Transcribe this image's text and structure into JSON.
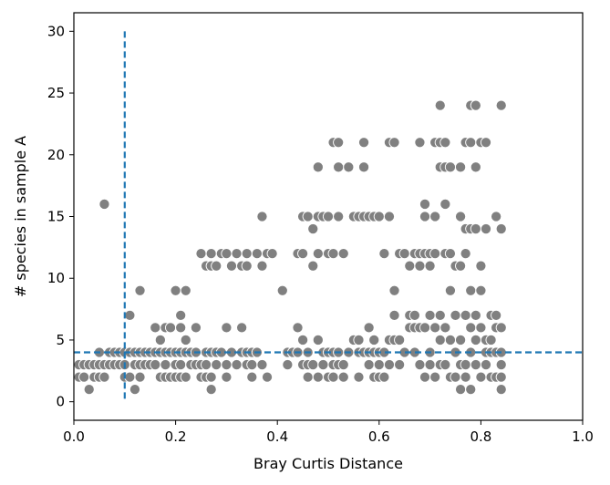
{
  "chart_data": {
    "type": "scatter",
    "title": "",
    "xlabel": "Bray Curtis Distance",
    "ylabel": "# species in sample A",
    "xlim": [
      0.0,
      1.0
    ],
    "ylim": [
      -1.5,
      31.5
    ],
    "xticks": [
      0.0,
      0.2,
      0.4,
      0.6,
      0.8,
      1.0
    ],
    "xtick_labels": [
      "0.0",
      "0.2",
      "0.4",
      "0.6",
      "0.8",
      "1.0"
    ],
    "yticks": [
      0,
      5,
      10,
      15,
      20,
      25,
      30
    ],
    "ytick_labels": [
      "0",
      "5",
      "10",
      "15",
      "20",
      "25",
      "30"
    ],
    "grid": false,
    "legend": "none",
    "marker_color": "#808080",
    "reference_lines": [
      {
        "orientation": "vertical",
        "x": 0.1,
        "y_range": [
          0,
          30
        ],
        "style": "dashed",
        "color": "#1f77b4"
      },
      {
        "orientation": "horizontal",
        "y": 4,
        "style": "dashed",
        "color": "#1f77b4"
      }
    ],
    "points": [
      [
        0.01,
        3
      ],
      [
        0.01,
        2
      ],
      [
        0.02,
        3
      ],
      [
        0.02,
        2
      ],
      [
        0.03,
        1
      ],
      [
        0.03,
        3
      ],
      [
        0.04,
        2
      ],
      [
        0.04,
        3
      ],
      [
        0.05,
        4
      ],
      [
        0.05,
        3
      ],
      [
        0.05,
        2
      ],
      [
        0.06,
        16
      ],
      [
        0.06,
        3
      ],
      [
        0.06,
        2
      ],
      [
        0.07,
        4
      ],
      [
        0.07,
        3
      ],
      [
        0.08,
        3
      ],
      [
        0.08,
        4
      ],
      [
        0.09,
        4
      ],
      [
        0.09,
        3
      ],
      [
        0.1,
        2
      ],
      [
        0.1,
        3
      ],
      [
        0.1,
        4
      ],
      [
        0.11,
        7
      ],
      [
        0.11,
        2
      ],
      [
        0.11,
        4
      ],
      [
        0.12,
        3
      ],
      [
        0.12,
        4
      ],
      [
        0.12,
        1
      ],
      [
        0.13,
        9
      ],
      [
        0.13,
        4
      ],
      [
        0.13,
        2
      ],
      [
        0.13,
        3
      ],
      [
        0.14,
        4
      ],
      [
        0.14,
        3
      ],
      [
        0.15,
        4
      ],
      [
        0.15,
        3
      ],
      [
        0.16,
        6
      ],
      [
        0.16,
        4
      ],
      [
        0.16,
        3
      ],
      [
        0.17,
        4
      ],
      [
        0.17,
        2
      ],
      [
        0.17,
        5
      ],
      [
        0.18,
        6
      ],
      [
        0.18,
        4
      ],
      [
        0.18,
        3
      ],
      [
        0.18,
        2
      ],
      [
        0.19,
        6
      ],
      [
        0.19,
        4
      ],
      [
        0.19,
        2
      ],
      [
        0.2,
        9
      ],
      [
        0.2,
        4
      ],
      [
        0.2,
        3
      ],
      [
        0.2,
        2
      ],
      [
        0.21,
        7
      ],
      [
        0.21,
        6
      ],
      [
        0.21,
        4
      ],
      [
        0.21,
        3
      ],
      [
        0.21,
        2
      ],
      [
        0.22,
        9
      ],
      [
        0.22,
        5
      ],
      [
        0.22,
        4
      ],
      [
        0.22,
        2
      ],
      [
        0.23,
        4
      ],
      [
        0.23,
        3
      ],
      [
        0.24,
        6
      ],
      [
        0.24,
        4
      ],
      [
        0.24,
        3
      ],
      [
        0.25,
        12
      ],
      [
        0.25,
        3
      ],
      [
        0.25,
        2
      ],
      [
        0.26,
        11
      ],
      [
        0.26,
        4
      ],
      [
        0.26,
        3
      ],
      [
        0.26,
        2
      ],
      [
        0.27,
        12
      ],
      [
        0.27,
        11
      ],
      [
        0.27,
        4
      ],
      [
        0.27,
        2
      ],
      [
        0.27,
        1
      ],
      [
        0.28,
        11
      ],
      [
        0.28,
        4
      ],
      [
        0.28,
        3
      ],
      [
        0.29,
        12
      ],
      [
        0.29,
        4
      ],
      [
        0.3,
        12
      ],
      [
        0.3,
        6
      ],
      [
        0.3,
        3
      ],
      [
        0.3,
        2
      ],
      [
        0.31,
        11
      ],
      [
        0.31,
        4
      ],
      [
        0.32,
        12
      ],
      [
        0.32,
        3
      ],
      [
        0.33,
        11
      ],
      [
        0.33,
        6
      ],
      [
        0.33,
        4
      ],
      [
        0.34,
        12
      ],
      [
        0.34,
        11
      ],
      [
        0.34,
        4
      ],
      [
        0.34,
        3
      ],
      [
        0.35,
        4
      ],
      [
        0.35,
        3
      ],
      [
        0.35,
        2
      ],
      [
        0.36,
        12
      ],
      [
        0.36,
        4
      ],
      [
        0.37,
        15
      ],
      [
        0.37,
        11
      ],
      [
        0.37,
        3
      ],
      [
        0.38,
        12
      ],
      [
        0.38,
        2
      ],
      [
        0.39,
        12
      ],
      [
        0.41,
        9
      ],
      [
        0.42,
        4
      ],
      [
        0.42,
        3
      ],
      [
        0.43,
        4
      ],
      [
        0.44,
        12
      ],
      [
        0.44,
        6
      ],
      [
        0.44,
        4
      ],
      [
        0.45,
        15
      ],
      [
        0.45,
        12
      ],
      [
        0.45,
        5
      ],
      [
        0.45,
        3
      ],
      [
        0.46,
        15
      ],
      [
        0.46,
        4
      ],
      [
        0.46,
        3
      ],
      [
        0.46,
        2
      ],
      [
        0.47,
        14
      ],
      [
        0.47,
        11
      ],
      [
        0.47,
        3
      ],
      [
        0.48,
        19
      ],
      [
        0.48,
        15
      ],
      [
        0.48,
        12
      ],
      [
        0.48,
        5
      ],
      [
        0.48,
        2
      ],
      [
        0.49,
        15
      ],
      [
        0.49,
        4
      ],
      [
        0.49,
        3
      ],
      [
        0.5,
        15
      ],
      [
        0.5,
        12
      ],
      [
        0.5,
        4
      ],
      [
        0.5,
        2
      ],
      [
        0.51,
        21
      ],
      [
        0.51,
        12
      ],
      [
        0.51,
        4
      ],
      [
        0.51,
        3
      ],
      [
        0.51,
        2
      ],
      [
        0.52,
        21
      ],
      [
        0.52,
        19
      ],
      [
        0.52,
        15
      ],
      [
        0.52,
        4
      ],
      [
        0.52,
        3
      ],
      [
        0.53,
        12
      ],
      [
        0.53,
        3
      ],
      [
        0.53,
        2
      ],
      [
        0.54,
        19
      ],
      [
        0.54,
        4
      ],
      [
        0.55,
        15
      ],
      [
        0.55,
        5
      ],
      [
        0.56,
        15
      ],
      [
        0.56,
        5
      ],
      [
        0.56,
        4
      ],
      [
        0.56,
        2
      ],
      [
        0.57,
        21
      ],
      [
        0.57,
        19
      ],
      [
        0.57,
        15
      ],
      [
        0.57,
        4
      ],
      [
        0.58,
        15
      ],
      [
        0.58,
        6
      ],
      [
        0.58,
        4
      ],
      [
        0.58,
        3
      ],
      [
        0.59,
        15
      ],
      [
        0.59,
        5
      ],
      [
        0.59,
        4
      ],
      [
        0.59,
        2
      ],
      [
        0.6,
        15
      ],
      [
        0.6,
        4
      ],
      [
        0.6,
        3
      ],
      [
        0.6,
        2
      ],
      [
        0.61,
        12
      ],
      [
        0.61,
        4
      ],
      [
        0.61,
        2
      ],
      [
        0.62,
        21
      ],
      [
        0.62,
        15
      ],
      [
        0.62,
        5
      ],
      [
        0.62,
        3
      ],
      [
        0.63,
        21
      ],
      [
        0.63,
        9
      ],
      [
        0.63,
        7
      ],
      [
        0.63,
        5
      ],
      [
        0.64,
        12
      ],
      [
        0.64,
        5
      ],
      [
        0.64,
        3
      ],
      [
        0.65,
        12
      ],
      [
        0.65,
        4
      ],
      [
        0.66,
        11
      ],
      [
        0.66,
        7
      ],
      [
        0.66,
        6
      ],
      [
        0.67,
        12
      ],
      [
        0.67,
        7
      ],
      [
        0.67,
        6
      ],
      [
        0.67,
        4
      ],
      [
        0.68,
        21
      ],
      [
        0.68,
        12
      ],
      [
        0.68,
        11
      ],
      [
        0.68,
        6
      ],
      [
        0.68,
        3
      ],
      [
        0.69,
        16
      ],
      [
        0.69,
        15
      ],
      [
        0.69,
        12
      ],
      [
        0.69,
        6
      ],
      [
        0.69,
        2
      ],
      [
        0.7,
        12
      ],
      [
        0.7,
        11
      ],
      [
        0.7,
        7
      ],
      [
        0.7,
        4
      ],
      [
        0.7,
        3
      ],
      [
        0.71,
        21
      ],
      [
        0.71,
        15
      ],
      [
        0.71,
        12
      ],
      [
        0.71,
        6
      ],
      [
        0.71,
        2
      ],
      [
        0.72,
        24
      ],
      [
        0.72,
        21
      ],
      [
        0.72,
        19
      ],
      [
        0.72,
        7
      ],
      [
        0.72,
        5
      ],
      [
        0.72,
        3
      ],
      [
        0.73,
        21
      ],
      [
        0.73,
        19
      ],
      [
        0.73,
        16
      ],
      [
        0.73,
        12
      ],
      [
        0.73,
        6
      ],
      [
        0.73,
        3
      ],
      [
        0.74,
        19
      ],
      [
        0.74,
        12
      ],
      [
        0.74,
        9
      ],
      [
        0.74,
        5
      ],
      [
        0.74,
        2
      ],
      [
        0.75,
        11
      ],
      [
        0.75,
        7
      ],
      [
        0.75,
        4
      ],
      [
        0.75,
        2
      ],
      [
        0.76,
        19
      ],
      [
        0.76,
        15
      ],
      [
        0.76,
        11
      ],
      [
        0.76,
        5
      ],
      [
        0.76,
        3
      ],
      [
        0.76,
        1
      ],
      [
        0.77,
        21
      ],
      [
        0.77,
        14
      ],
      [
        0.77,
        12
      ],
      [
        0.77,
        7
      ],
      [
        0.77,
        3
      ],
      [
        0.77,
        2
      ],
      [
        0.78,
        24
      ],
      [
        0.78,
        21
      ],
      [
        0.78,
        14
      ],
      [
        0.78,
        9
      ],
      [
        0.78,
        6
      ],
      [
        0.78,
        4
      ],
      [
        0.78,
        1
      ],
      [
        0.79,
        24
      ],
      [
        0.79,
        19
      ],
      [
        0.79,
        14
      ],
      [
        0.79,
        7
      ],
      [
        0.79,
        5
      ],
      [
        0.79,
        3
      ],
      [
        0.8,
        21
      ],
      [
        0.8,
        11
      ],
      [
        0.8,
        9
      ],
      [
        0.8,
        6
      ],
      [
        0.8,
        2
      ],
      [
        0.81,
        21
      ],
      [
        0.81,
        14
      ],
      [
        0.81,
        5
      ],
      [
        0.81,
        4
      ],
      [
        0.81,
        3
      ],
      [
        0.82,
        7
      ],
      [
        0.82,
        5
      ],
      [
        0.82,
        4
      ],
      [
        0.82,
        2
      ],
      [
        0.83,
        15
      ],
      [
        0.83,
        7
      ],
      [
        0.83,
        6
      ],
      [
        0.83,
        4
      ],
      [
        0.83,
        2
      ],
      [
        0.84,
        24
      ],
      [
        0.84,
        14
      ],
      [
        0.84,
        6
      ],
      [
        0.84,
        4
      ],
      [
        0.84,
        3
      ],
      [
        0.84,
        2
      ],
      [
        0.84,
        1
      ]
    ]
  }
}
